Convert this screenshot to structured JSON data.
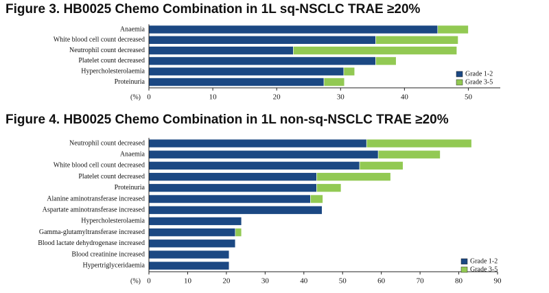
{
  "chart_data": [
    {
      "type": "stacked-bar-horizontal",
      "title": "Figure 3. HB0025 Chemo Combination in 1L sq-NSCLC TRAE ≥20%",
      "categories": [
        "Anaemia",
        "White blood cell count decreased",
        "Neutrophil count decreased",
        "Platelet count decreased",
        "Hypercholesterolaemia",
        "Proteinuria"
      ],
      "series": [
        {
          "name": "Grade 1-2",
          "color": "#1b4883",
          "values": [
            45.2,
            35.5,
            22.6,
            35.5,
            30.5,
            27.4
          ]
        },
        {
          "name": "Grade 3-5",
          "color": "#92c953",
          "values": [
            4.8,
            12.9,
            25.6,
            3.2,
            1.7,
            3.2
          ]
        }
      ],
      "xlabel": "(%)",
      "xlim": [
        0,
        55
      ],
      "xticks": [
        0,
        10,
        20,
        30,
        40,
        50
      ],
      "legend": "lower right"
    },
    {
      "type": "stacked-bar-horizontal",
      "title": "Figure 4. HB0025 Chemo Combination in 1L non-sq-NSCLC TRAE ≥20%",
      "categories": [
        "Neutrophil count decreased",
        "Anaemia",
        "White blood cell count decreased",
        "Platelet count decreased",
        "Proteinuria",
        "Alanine aminotransferase increased",
        "Aspartate aminotransferase increased",
        "Hypercholesterolaemia",
        "Gamma-glutamyltransferase increased",
        "Blood lactate dehydrogenase increased",
        "Blood creatinine increased",
        "Hypertriglyceridaemia"
      ],
      "series": [
        {
          "name": "Grade 1-2",
          "color": "#1b4883",
          "values": [
            56.2,
            59.2,
            54.4,
            43.3,
            43.3,
            41.7,
            44.7,
            23.9,
            22.3,
            22.3,
            20.7,
            20.7
          ]
        },
        {
          "name": "Grade 3-5",
          "color": "#92c953",
          "values": [
            27.1,
            16,
            11.2,
            19.1,
            6.3,
            3.2,
            0,
            0,
            1.6,
            0,
            0,
            0
          ]
        }
      ],
      "xlabel": "(%)",
      "xlim": [
        0,
        90
      ],
      "xticks": [
        0,
        10,
        20,
        30,
        40,
        50,
        60,
        70,
        80,
        90
      ],
      "legend": "lower right"
    }
  ]
}
